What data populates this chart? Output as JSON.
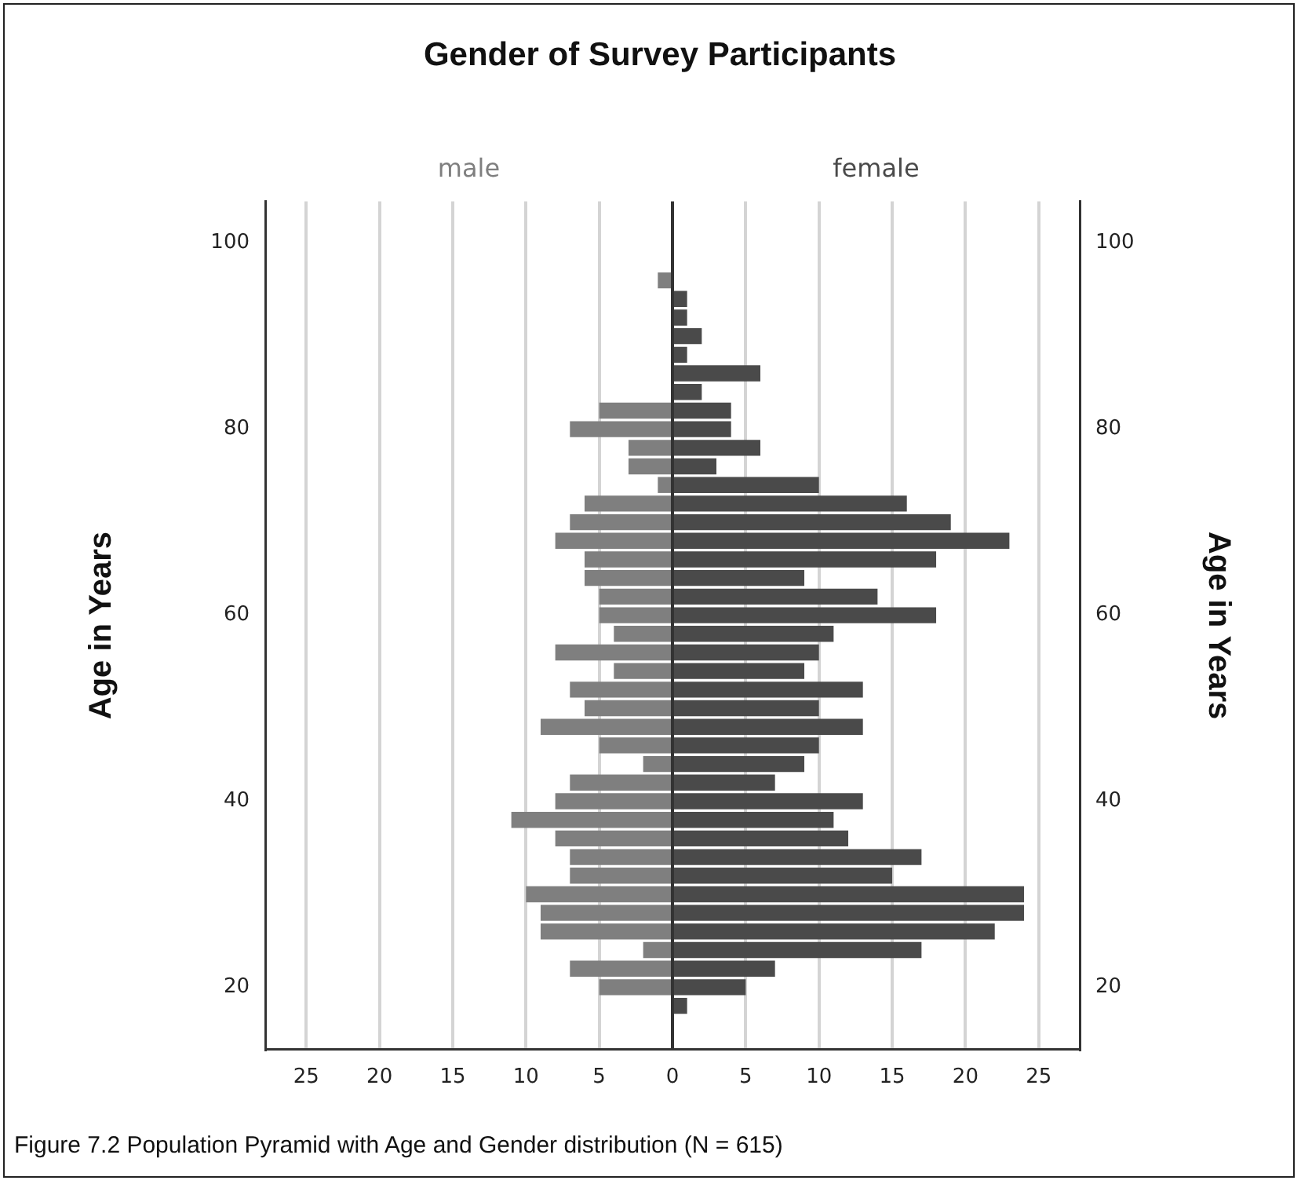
{
  "chart_data": {
    "type": "bar",
    "orientation": "horizontal",
    "stacked": true,
    "title": "Gender of Survey Participants",
    "ylabel": "Age in Years",
    "y2label": "Age in Years",
    "x": [
      18,
      20,
      22,
      24,
      26,
      28,
      30,
      32,
      34,
      36,
      38,
      40,
      42,
      44,
      46,
      48,
      50,
      52,
      54,
      56,
      58,
      60,
      62,
      64,
      66,
      68,
      70,
      72,
      74,
      76,
      78,
      80,
      82,
      84,
      86,
      88,
      90,
      92,
      94,
      96
    ],
    "series": [
      {
        "name": "male",
        "color": "#7f7f7f",
        "values": [
          0,
          -5,
          -7,
          -2,
          -9,
          -9,
          -10,
          -7,
          -7,
          -8,
          -11,
          -8,
          -7,
          -2,
          -5,
          -9,
          -6,
          -7,
          -4,
          -8,
          -4,
          -5,
          -5,
          -6,
          -6,
          -8,
          -7,
          -6,
          -1,
          -3,
          -3,
          -7,
          -5,
          0,
          0,
          0,
          0,
          0,
          0,
          -1
        ]
      },
      {
        "name": "female",
        "color": "#4a4a4a",
        "values": [
          1,
          5,
          7,
          17,
          22,
          24,
          24,
          15,
          17,
          12,
          11,
          13,
          7,
          9,
          10,
          13,
          10,
          13,
          9,
          10,
          11,
          18,
          14,
          9,
          18,
          23,
          19,
          16,
          10,
          3,
          6,
          4,
          4,
          2,
          6,
          1,
          2,
          1,
          1,
          0
        ]
      }
    ],
    "xlim": [
      -27.8,
      27.8
    ],
    "xticks": [
      {
        "value": -25,
        "label": "25"
      },
      {
        "value": -20,
        "label": "20"
      },
      {
        "value": -15,
        "label": "15"
      },
      {
        "value": -10,
        "label": "10"
      },
      {
        "value": -5,
        "label": "5"
      },
      0,
      5,
      10,
      15,
      20,
      25
    ],
    "ylim": [
      13.3,
      104.5
    ],
    "yticks": [
      20,
      40,
      60,
      80,
      100
    ],
    "y2lim": [
      13.3,
      104.5
    ],
    "y2ticks": [
      20,
      40,
      60,
      80,
      100
    ],
    "grid": "x",
    "annotations": [
      "Figure 7.2 Population Pyramid with Age and Gender distribution (N = 615)"
    ]
  }
}
